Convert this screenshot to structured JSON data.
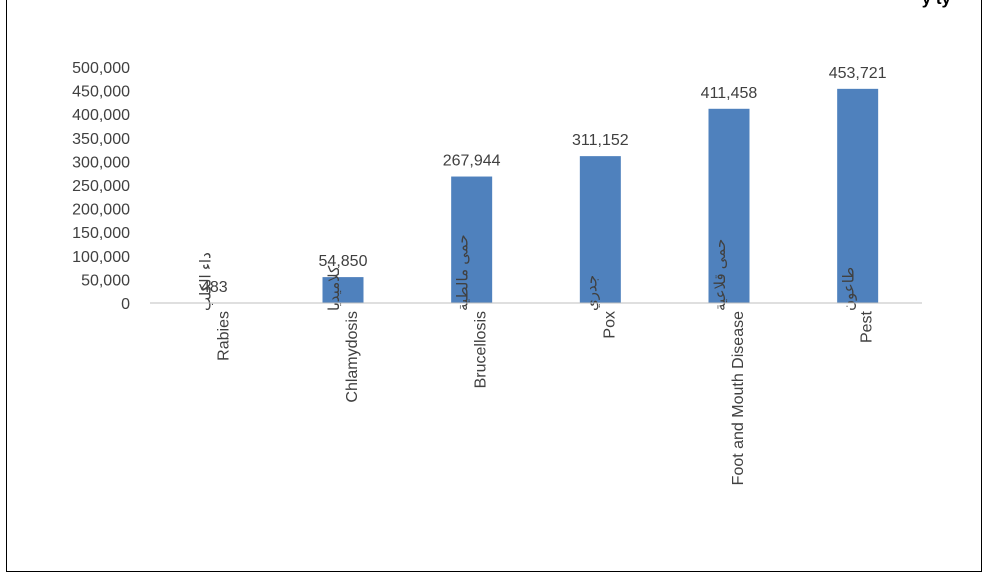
{
  "chart_data": {
    "type": "bar",
    "title_fragment": "y ty",
    "categories": [
      {
        "ar": "داء الكلب",
        "en": "Rabies"
      },
      {
        "ar": "كلاميديا",
        "en": "Chlamydosis"
      },
      {
        "ar": "حمى مالطية",
        "en": "Brucellosis"
      },
      {
        "ar": "جدري",
        "en": "Pox"
      },
      {
        "ar": "حمى قلاعية",
        "en": "Foot and Mouth Disease"
      },
      {
        "ar": "طاعون",
        "en": "Pest"
      }
    ],
    "values": [
      483,
      54850,
      267944,
      311152,
      411458,
      453721
    ],
    "data_labels": [
      "483",
      "54,850",
      "267,944",
      "311,152",
      "411,458",
      "453,721"
    ],
    "ylim": [
      0,
      500000
    ],
    "yticks": [
      0,
      50000,
      100000,
      150000,
      200000,
      250000,
      300000,
      350000,
      400000,
      450000,
      500000
    ],
    "ytick_labels": [
      "0",
      "50,000",
      "100,000",
      "150,000",
      "200,000",
      "250,000",
      "300,000",
      "350,000",
      "400,000",
      "450,000",
      "500,000"
    ],
    "bar_color": "#4f81bd",
    "grid": false,
    "legend": "none"
  }
}
